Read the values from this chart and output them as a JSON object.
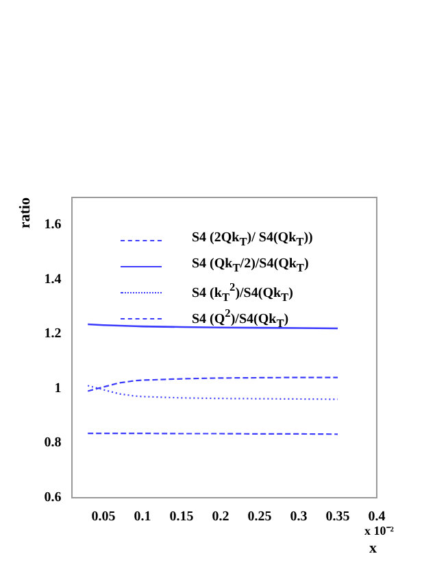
{
  "chart_data": {
    "type": "line",
    "xlabel": "x",
    "ylabel": "ratio",
    "annotations": [
      "x 10⁻²"
    ],
    "x": [
      0.03,
      0.05,
      0.07,
      0.09,
      0.1,
      0.15,
      0.2,
      0.25,
      0.3,
      0.35
    ],
    "series": [
      {
        "name": "S4 (2Qk$_{T}$)/ S4(Qk$_{T}$))",
        "color": "#3a3aff",
        "line_style": "dashed",
        "values": [
          0.835,
          0.835,
          0.835,
          0.835,
          0.835,
          0.834,
          0.834,
          0.833,
          0.833,
          0.832
        ]
      },
      {
        "name": "S4 (Qk$_{T}$/2)/S4(Qk$_{T}$)",
        "color": "#3a3aff",
        "line_style": "solid",
        "values": [
          1.235,
          1.232,
          1.23,
          1.228,
          1.227,
          1.225,
          1.223,
          1.222,
          1.221,
          1.22
        ]
      },
      {
        "name": "S4 (k$_{T}$$^{2}$)/S4(Qk$_{T}$)",
        "color": "#3a3aff",
        "line_style": "dotted",
        "values": [
          1.01,
          0.995,
          0.98,
          0.972,
          0.97,
          0.965,
          0.963,
          0.962,
          0.961,
          0.96
        ]
      },
      {
        "name": "S4 (Q$^{2}$)/S4(Qk$_{T}$)",
        "color": "#3a3aff",
        "line_style": "dashed",
        "values": [
          0.99,
          1.005,
          1.02,
          1.028,
          1.03,
          1.035,
          1.038,
          1.039,
          1.04,
          1.04
        ]
      }
    ],
    "xlim": [
      0.01,
      0.4
    ],
    "xticks": [
      0.05,
      0.1,
      0.15,
      0.2,
      0.25,
      0.3,
      0.35,
      0.4
    ],
    "ylim": [
      0.6,
      1.7
    ],
    "yticks": [
      0.6,
      0.8,
      1,
      1.2,
      1.4,
      1.6
    ],
    "grid": false,
    "legend": "top right",
    "marker": "none"
  }
}
